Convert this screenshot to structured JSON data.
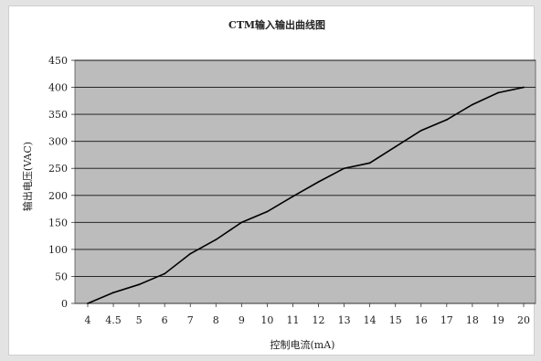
{
  "chart_data": {
    "type": "line",
    "title": "CTM输入输出曲线图",
    "xlabel": "控制电流(mA)",
    "ylabel": "输出电压(VAC)",
    "categories": [
      "4",
      "4.5",
      "5",
      "6",
      "7",
      "8",
      "9",
      "10",
      "11",
      "12",
      "13",
      "14",
      "15",
      "16",
      "17",
      "18",
      "19",
      "20"
    ],
    "series": [
      {
        "values": [
          0,
          20,
          35,
          55,
          92,
          118,
          150,
          170,
          198,
          225,
          250,
          260,
          290,
          320,
          340,
          368,
          390,
          400
        ]
      }
    ],
    "ylim": [
      0,
      450
    ],
    "yticks": [
      0,
      50,
      100,
      150,
      200,
      250,
      300,
      350,
      400,
      450
    ],
    "grid": true,
    "legend": "none",
    "colors": {
      "plot_background": "#bcbcbc",
      "gridline": "#111111",
      "line": "#000000"
    }
  }
}
